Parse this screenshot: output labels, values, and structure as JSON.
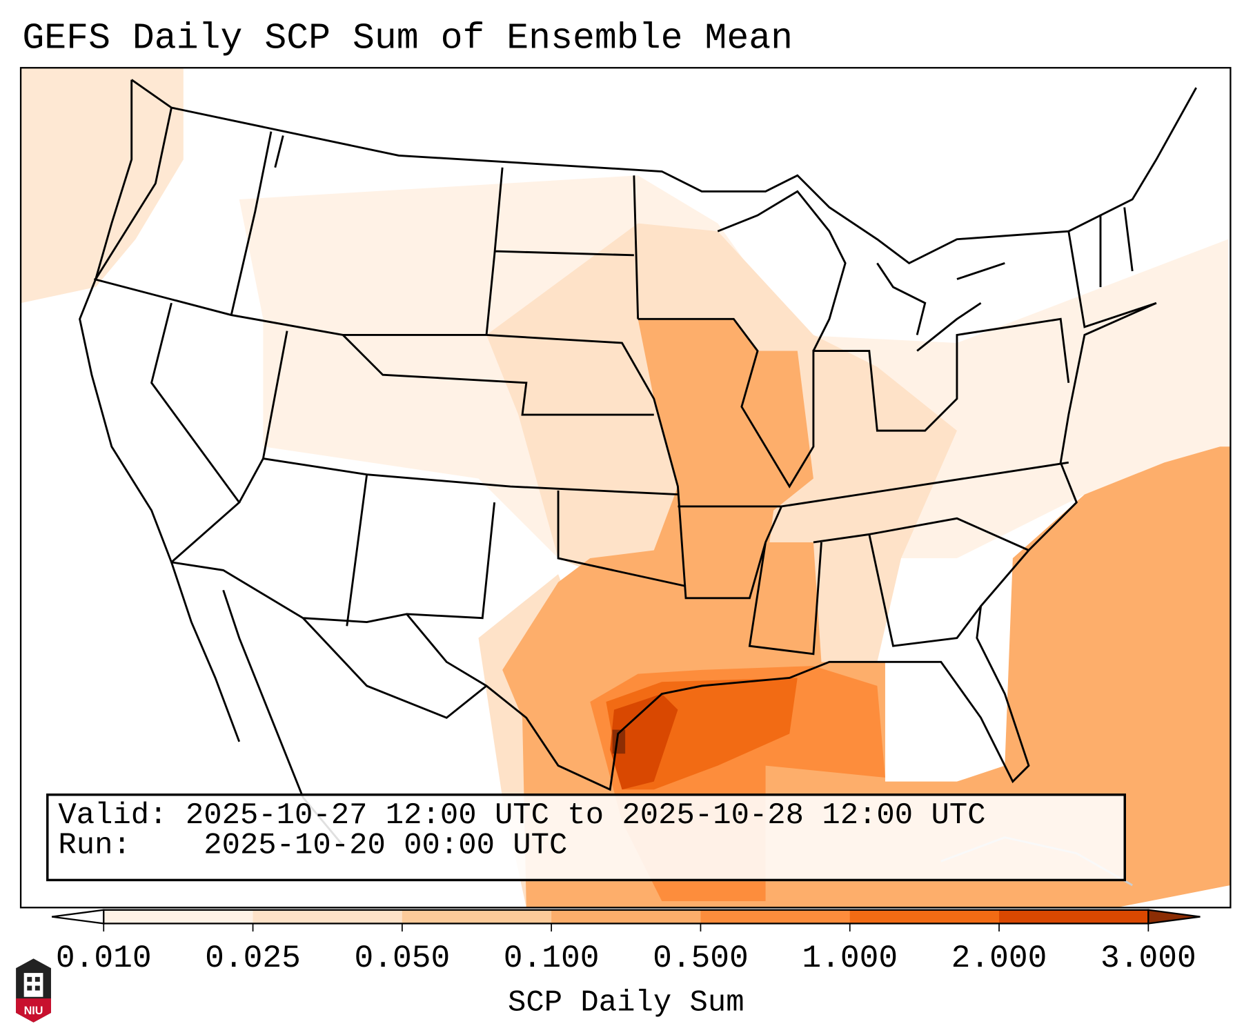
{
  "title": "GEFS Daily SCP Sum of Ensemble Mean",
  "info": {
    "valid_label": "Valid:",
    "valid_value": "2025-10-27 12:00 UTC to 2025-10-28 12:00 UTC",
    "run_label": "Run:",
    "run_value": "2025-10-20 00:00 UTC"
  },
  "colorbar": {
    "label": "SCP Daily Sum",
    "ticks": [
      "0.010",
      "0.025",
      "0.050",
      "0.100",
      "0.500",
      "1.000",
      "2.000",
      "3.000"
    ],
    "under_color": "#ffffff",
    "colors": [
      "#fff2e6",
      "#fee2c8",
      "#fdcb9a",
      "#fdae6b",
      "#fd8d3c",
      "#f26b14",
      "#d94801"
    ],
    "over_color": "#8c2d04"
  },
  "logo": {
    "text": "NIU"
  }
}
